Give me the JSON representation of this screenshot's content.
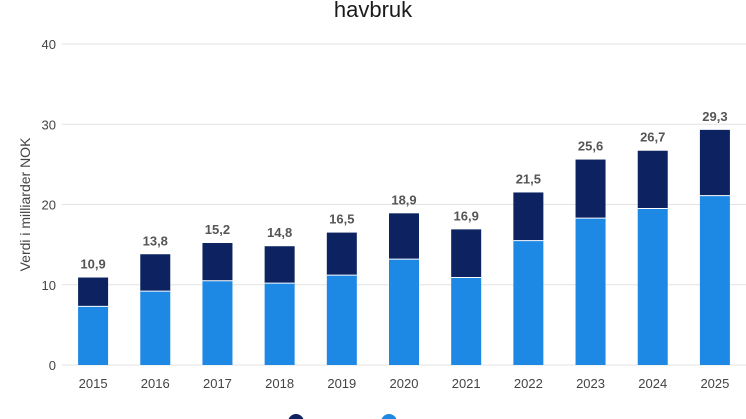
{
  "chart_data": {
    "type": "bar",
    "stacked": true,
    "title": "havbruk",
    "xlabel": "",
    "ylabel": "Verdi i milliarder NOK",
    "categories": [
      "2015",
      "2016",
      "2017",
      "2018",
      "2019",
      "2020",
      "2021",
      "2022",
      "2023",
      "2024",
      "2025"
    ],
    "series": [
      {
        "name": "",
        "color": "#1e88e5",
        "values": [
          7.3,
          9.2,
          10.5,
          10.2,
          11.2,
          13.2,
          10.9,
          15.5,
          18.3,
          19.5,
          21.1
        ]
      },
      {
        "name": "",
        "color": "#0d2260",
        "values": [
          3.6,
          4.6,
          4.7,
          4.6,
          5.3,
          5.7,
          6.0,
          6.0,
          7.3,
          7.2,
          8.2
        ]
      }
    ],
    "totals": [
      "10,9",
      "13,8",
      "15,2",
      "14,8",
      "16,5",
      "18,9",
      "16,9",
      "21,5",
      "25,6",
      "26,7",
      "29,3"
    ],
    "ylim": [
      0,
      40
    ],
    "yticks": [
      0,
      10,
      20,
      30,
      40
    ],
    "grid": true,
    "legend_position": "bottom"
  }
}
